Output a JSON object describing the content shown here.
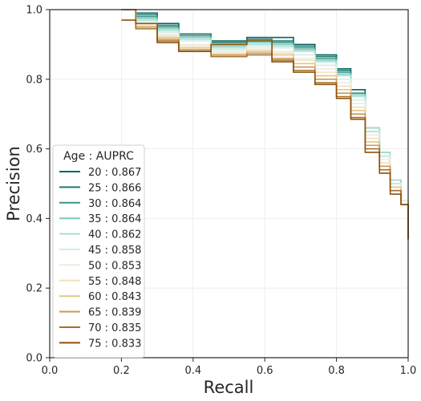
{
  "chart_data": {
    "type": "line",
    "title": "",
    "xlabel": "Recall",
    "ylabel": "Precision",
    "xlim": [
      0.0,
      1.0
    ],
    "ylim": [
      0.0,
      1.0
    ],
    "xticks": [
      "0.0",
      "0.2",
      "0.4",
      "0.6",
      "0.8",
      "1.0"
    ],
    "yticks": [
      "0.0",
      "0.2",
      "0.4",
      "0.6",
      "0.8",
      "1.0"
    ],
    "grid": true,
    "legend": {
      "title": "Age : AUPRC",
      "placement": "lower-left"
    },
    "series": [
      {
        "name": "20 : 0.867",
        "color": "#01665e",
        "x": [
          0.2,
          0.24,
          0.3,
          0.36,
          0.45,
          0.55,
          0.62,
          0.68,
          0.74,
          0.8,
          0.84,
          0.88,
          0.92,
          0.95,
          0.98,
          1.0
        ],
        "y": [
          1.0,
          0.99,
          0.96,
          0.93,
          0.91,
          0.92,
          0.92,
          0.9,
          0.87,
          0.83,
          0.77,
          0.65,
          0.58,
          0.5,
          0.45,
          0.34
        ]
      },
      {
        "name": "25 : 0.866",
        "color": "#1f7b72",
        "x": [
          0.2,
          0.24,
          0.3,
          0.36,
          0.45,
          0.55,
          0.62,
          0.68,
          0.74,
          0.8,
          0.84,
          0.88,
          0.92,
          0.95,
          0.98,
          1.0
        ],
        "y": [
          1.0,
          0.985,
          0.955,
          0.93,
          0.905,
          0.915,
          0.91,
          0.895,
          0.865,
          0.825,
          0.76,
          0.66,
          0.58,
          0.5,
          0.45,
          0.34
        ]
      },
      {
        "name": "30 : 0.864",
        "color": "#3c958a",
        "x": [
          0.2,
          0.24,
          0.3,
          0.36,
          0.45,
          0.55,
          0.62,
          0.68,
          0.74,
          0.8,
          0.84,
          0.88,
          0.92,
          0.95,
          0.98,
          1.0
        ],
        "y": [
          1.0,
          0.98,
          0.95,
          0.925,
          0.9,
          0.91,
          0.905,
          0.89,
          0.86,
          0.82,
          0.76,
          0.66,
          0.59,
          0.51,
          0.45,
          0.34
        ]
      },
      {
        "name": "35 : 0.864",
        "color": "#7fc8bb",
        "x": [
          0.2,
          0.24,
          0.3,
          0.36,
          0.45,
          0.55,
          0.62,
          0.68,
          0.74,
          0.8,
          0.84,
          0.88,
          0.92,
          0.95,
          0.98,
          1.0
        ],
        "y": [
          1.0,
          0.975,
          0.945,
          0.92,
          0.895,
          0.905,
          0.9,
          0.885,
          0.855,
          0.815,
          0.755,
          0.66,
          0.59,
          0.51,
          0.45,
          0.34
        ]
      },
      {
        "name": "40 : 0.862",
        "color": "#aadfd4",
        "x": [
          0.2,
          0.24,
          0.3,
          0.36,
          0.45,
          0.55,
          0.62,
          0.68,
          0.74,
          0.8,
          0.84,
          0.88,
          0.92,
          0.95,
          0.98,
          1.0
        ],
        "y": [
          1.0,
          0.97,
          0.94,
          0.915,
          0.89,
          0.9,
          0.895,
          0.88,
          0.85,
          0.81,
          0.75,
          0.66,
          0.59,
          0.51,
          0.45,
          0.34
        ]
      },
      {
        "name": "45 : 0.858",
        "color": "#d3eee9",
        "x": [
          0.2,
          0.24,
          0.3,
          0.36,
          0.45,
          0.55,
          0.62,
          0.68,
          0.74,
          0.8,
          0.84,
          0.88,
          0.92,
          0.95,
          0.98,
          1.0
        ],
        "y": [
          1.0,
          0.965,
          0.935,
          0.91,
          0.885,
          0.895,
          0.89,
          0.87,
          0.84,
          0.8,
          0.74,
          0.65,
          0.58,
          0.5,
          0.45,
          0.34
        ]
      },
      {
        "name": "50 : 0.853",
        "color": "#f0ebe0",
        "x": [
          0.2,
          0.24,
          0.3,
          0.36,
          0.45,
          0.55,
          0.62,
          0.68,
          0.74,
          0.8,
          0.84,
          0.88,
          0.92,
          0.95,
          0.98,
          1.0
        ],
        "y": [
          1.0,
          0.96,
          0.93,
          0.9,
          0.88,
          0.89,
          0.88,
          0.86,
          0.83,
          0.79,
          0.73,
          0.64,
          0.57,
          0.5,
          0.45,
          0.34
        ]
      },
      {
        "name": "55 : 0.848",
        "color": "#f2e0b8",
        "x": [
          0.2,
          0.24,
          0.3,
          0.36,
          0.45,
          0.55,
          0.62,
          0.68,
          0.74,
          0.8,
          0.84,
          0.88,
          0.92,
          0.95,
          0.98,
          1.0
        ],
        "y": [
          1.0,
          0.955,
          0.925,
          0.895,
          0.875,
          0.885,
          0.875,
          0.855,
          0.82,
          0.78,
          0.72,
          0.63,
          0.56,
          0.49,
          0.44,
          0.34
        ]
      },
      {
        "name": "60 : 0.843",
        "color": "#e5c58a",
        "x": [
          0.2,
          0.24,
          0.3,
          0.36,
          0.45,
          0.55,
          0.62,
          0.68,
          0.74,
          0.8,
          0.84,
          0.88,
          0.92,
          0.95,
          0.98,
          1.0
        ],
        "y": [
          1.0,
          0.95,
          0.92,
          0.89,
          0.87,
          0.88,
          0.87,
          0.845,
          0.81,
          0.77,
          0.71,
          0.62,
          0.55,
          0.49,
          0.44,
          0.34
        ]
      },
      {
        "name": "65 : 0.839",
        "color": "#c99a55",
        "x": [
          0.2,
          0.24,
          0.3,
          0.36,
          0.45,
          0.55,
          0.62,
          0.68,
          0.74,
          0.8,
          0.84,
          0.88,
          0.92,
          0.95,
          0.98,
          1.0
        ],
        "y": [
          1.0,
          0.95,
          0.915,
          0.885,
          0.87,
          0.875,
          0.86,
          0.835,
          0.8,
          0.76,
          0.7,
          0.61,
          0.55,
          0.48,
          0.44,
          0.34
        ]
      },
      {
        "name": "70 : 0.835",
        "color": "#a6712b",
        "x": [
          0.2,
          0.24,
          0.3,
          0.36,
          0.45,
          0.55,
          0.62,
          0.68,
          0.74,
          0.8,
          0.84,
          0.88,
          0.92,
          0.95,
          0.98,
          1.0
        ],
        "y": [
          1.0,
          0.945,
          0.91,
          0.88,
          0.865,
          0.87,
          0.855,
          0.825,
          0.79,
          0.75,
          0.69,
          0.6,
          0.54,
          0.48,
          0.44,
          0.34
        ]
      },
      {
        "name": "75 : 0.833",
        "color": "#8c510a",
        "x": [
          0.2,
          0.24,
          0.3,
          0.36,
          0.45,
          0.55,
          0.62,
          0.68,
          0.74,
          0.8,
          0.84,
          0.88,
          0.92,
          0.95,
          0.98,
          1.0
        ],
        "y": [
          0.97,
          0.96,
          0.905,
          0.88,
          0.9,
          0.91,
          0.85,
          0.82,
          0.785,
          0.745,
          0.685,
          0.59,
          0.53,
          0.47,
          0.44,
          0.34
        ]
      }
    ]
  }
}
